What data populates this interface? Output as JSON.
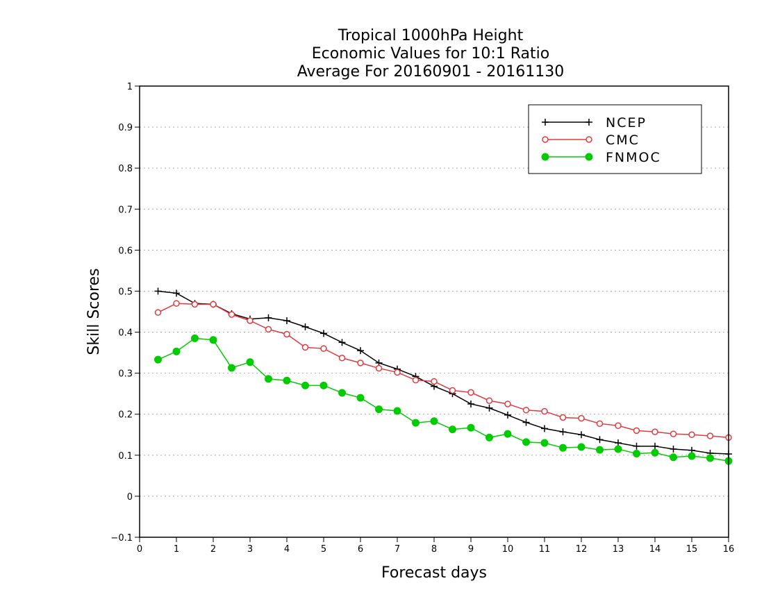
{
  "chart_data": {
    "type": "line",
    "title": [
      "Tropical 1000hPa Height",
      "Economic Values for 10:1 Ratio",
      "Average For 20160901 - 20161130"
    ],
    "xlabel": "Forecast days",
    "ylabel": "Skill Scores",
    "xlim": [
      0,
      16
    ],
    "ylim": [
      -0.1,
      1
    ],
    "xticks": [
      0,
      1,
      2,
      3,
      4,
      5,
      6,
      7,
      8,
      9,
      10,
      11,
      12,
      13,
      14,
      15,
      16
    ],
    "yticks": [
      -0.1,
      0,
      0.1,
      0.2,
      0.3,
      0.4,
      0.5,
      0.6,
      0.7,
      0.8,
      0.9,
      1
    ],
    "ytick_labels": [
      "−0.1",
      "0",
      "0.1",
      "0.2",
      "0.3",
      "0.4",
      "0.5",
      "0.6",
      "0.7",
      "0.8",
      "0.9",
      "1"
    ],
    "grid": "horizontal dotted",
    "legend_position": "top-right",
    "x": [
      0.5,
      1,
      1.5,
      2,
      2.5,
      3,
      3.5,
      4,
      4.5,
      5,
      5.5,
      6,
      6.5,
      7,
      7.5,
      8,
      8.5,
      9,
      9.5,
      10,
      10.5,
      11,
      11.5,
      12,
      12.5,
      13,
      13.5,
      14,
      14.5,
      15,
      15.5,
      16
    ],
    "series": [
      {
        "name": "NCEP",
        "color": "#000000",
        "marker": "plus",
        "values": [
          0.5,
          0.495,
          0.47,
          0.468,
          0.445,
          0.432,
          0.435,
          0.428,
          0.413,
          0.397,
          0.375,
          0.355,
          0.325,
          0.31,
          0.292,
          0.268,
          0.25,
          0.225,
          0.215,
          0.198,
          0.18,
          0.165,
          0.157,
          0.15,
          0.138,
          0.13,
          0.122,
          0.122,
          0.115,
          0.112,
          0.105,
          0.103
        ]
      },
      {
        "name": "CMC",
        "color": "#e03a3e",
        "marker": "open-circle",
        "values": [
          0.448,
          0.47,
          0.468,
          0.468,
          0.443,
          0.428,
          0.407,
          0.395,
          0.363,
          0.36,
          0.337,
          0.325,
          0.312,
          0.302,
          0.283,
          0.28,
          0.258,
          0.253,
          0.233,
          0.225,
          0.21,
          0.207,
          0.192,
          0.19,
          0.177,
          0.172,
          0.16,
          0.157,
          0.152,
          0.15,
          0.147,
          0.143
        ]
      },
      {
        "name": "FNMOC",
        "color": "#00cc00",
        "marker": "filled-circle",
        "values": [
          0.333,
          0.353,
          0.385,
          0.381,
          0.313,
          0.327,
          0.286,
          0.282,
          0.27,
          0.27,
          0.252,
          0.24,
          0.212,
          0.208,
          0.179,
          0.183,
          0.163,
          0.167,
          0.143,
          0.152,
          0.132,
          0.13,
          0.118,
          0.12,
          0.113,
          0.115,
          0.104,
          0.106,
          0.095,
          0.098,
          0.093,
          0.086
        ]
      }
    ]
  }
}
